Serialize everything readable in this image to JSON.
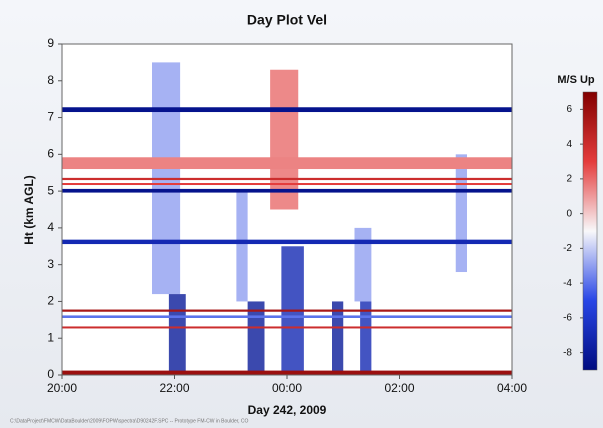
{
  "chart_data": {
    "type": "heatmap",
    "title": "Day Plot Vel",
    "x_label": "Day 242, 2009",
    "y_label": "Ht (km AGL)",
    "colorbar_label": "M/S Up",
    "footer": "C:\\DataProject\\FMCW\\DataBoulder\\2009\\FOPW\\spectra\\D90242F.SPC  --  Prototype FM-CW in Boulder, CO",
    "xlim": [
      20,
      28
    ],
    "xticks": [
      {
        "value": 20,
        "label": "20:00"
      },
      {
        "value": 22,
        "label": "22:00"
      },
      {
        "value": 24,
        "label": "00:00"
      },
      {
        "value": 26,
        "label": "02:00"
      },
      {
        "value": 28,
        "label": "04:00"
      }
    ],
    "ylim": [
      0,
      9
    ],
    "yticks": [
      0,
      1,
      2,
      3,
      4,
      5,
      6,
      7,
      8,
      9
    ],
    "zlim": [
      -9,
      7
    ],
    "zticks": [
      6,
      4,
      2,
      0,
      -2,
      -4,
      -6,
      -8
    ],
    "layers": [
      {
        "y": [
          7.15,
          7.28
        ],
        "value": -8.5
      },
      {
        "y": [
          5.6,
          5.92
        ],
        "value": 1.5
      },
      {
        "y": [
          5.3,
          5.36
        ],
        "value": 4
      },
      {
        "y": [
          5.18,
          5.22
        ],
        "value": 3
      },
      {
        "y": [
          4.96,
          5.06
        ],
        "value": -8.5
      },
      {
        "y": [
          3.56,
          3.68
        ],
        "value": -7
      },
      {
        "y": [
          1.72,
          1.78
        ],
        "value": 5.5
      },
      {
        "y": [
          1.28,
          1.32
        ],
        "value": 4
      },
      {
        "y": [
          0,
          0.12
        ],
        "value": 6
      },
      {
        "y": [
          1.55,
          1.62
        ],
        "value": -4
      }
    ],
    "streaks": [
      {
        "x": [
          21.6,
          22.1
        ],
        "y": [
          2.2,
          8.5
        ],
        "value": -3
      },
      {
        "x": [
          21.9,
          22.2
        ],
        "y": [
          0,
          2.2
        ],
        "value": -8
      },
      {
        "x": [
          23.1,
          23.3
        ],
        "y": [
          2,
          5
        ],
        "value": -3
      },
      {
        "x": [
          23.3,
          23.6
        ],
        "y": [
          0,
          2
        ],
        "value": -8
      },
      {
        "x": [
          23.7,
          24.2
        ],
        "y": [
          4.5,
          8.3
        ],
        "value": 2
      },
      {
        "x": [
          23.9,
          24.3
        ],
        "y": [
          0,
          3.5
        ],
        "value": -7
      },
      {
        "x": [
          24.8,
          25.0
        ],
        "y": [
          0,
          2
        ],
        "value": -8
      },
      {
        "x": [
          25.3,
          25.5
        ],
        "y": [
          0,
          2
        ],
        "value": -7
      },
      {
        "x": [
          25.2,
          25.5
        ],
        "y": [
          2,
          4
        ],
        "value": -3
      },
      {
        "x": [
          27.0,
          27.2
        ],
        "y": [
          2.8,
          6
        ],
        "value": -3
      }
    ]
  }
}
